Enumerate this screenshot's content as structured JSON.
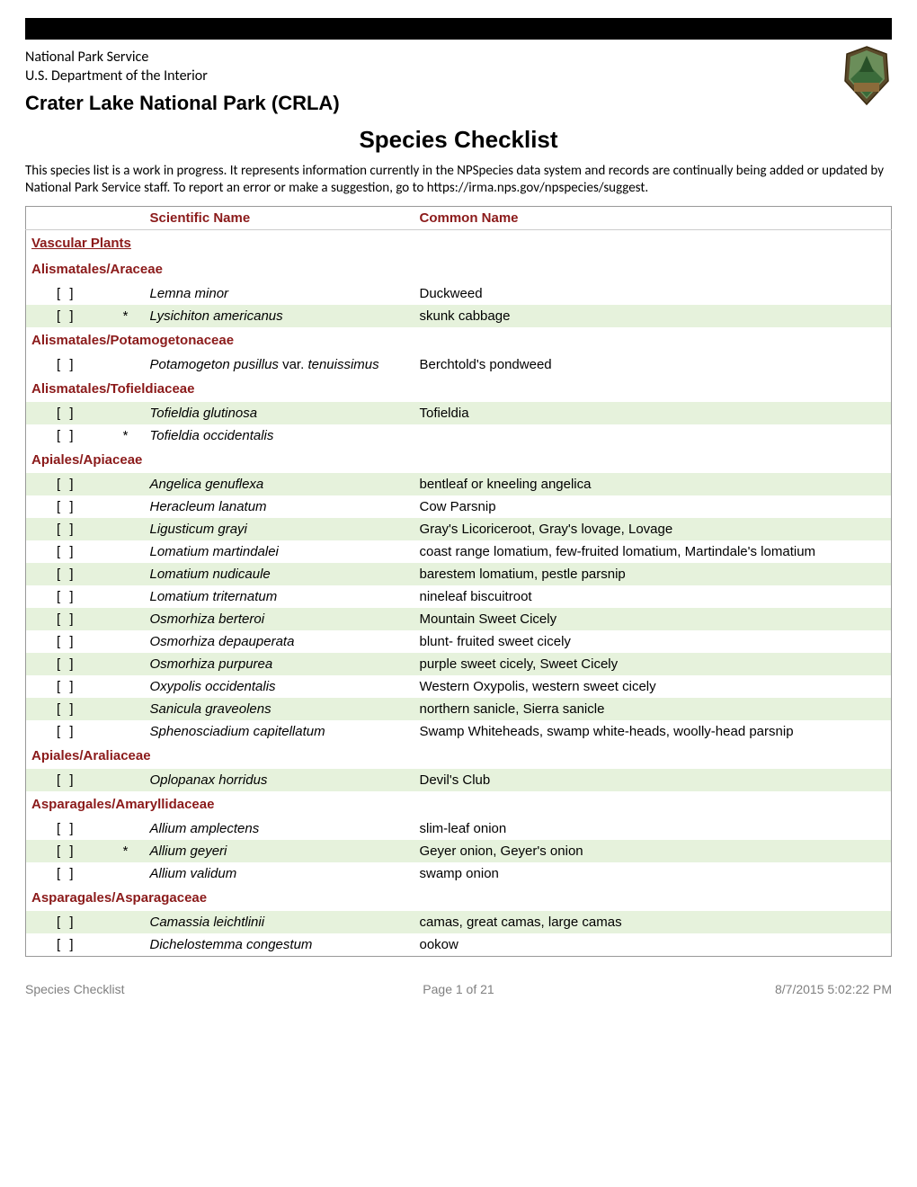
{
  "header": {
    "agency": "National Park Service",
    "department": "U.S. Department of the Interior",
    "park_name": "Crater Lake National Park (CRLA)",
    "page_title": "Species Checklist",
    "intro": "This species list is a work in progress. It represents information currently in the NPSpecies data system and records are continually being added or updated by National Park Service staff.  To report an error or make a suggestion, go to https://irma.nps.gov/npspecies/suggest."
  },
  "table": {
    "header_color": "#8b1a1a",
    "shade_color": "#e6f2dc",
    "columns": {
      "scientific": "Scientific Name",
      "common": "Common Name"
    },
    "checkbox_glyph": "[   ]"
  },
  "rows": [
    {
      "type": "major",
      "label": "Vascular Plants"
    },
    {
      "type": "family",
      "label": "Alismatales/Araceae"
    },
    {
      "type": "species",
      "shade": false,
      "star": false,
      "sci": "Lemna minor",
      "common": "Duckweed"
    },
    {
      "type": "species",
      "shade": true,
      "star": true,
      "sci": "Lysichiton americanus",
      "common": "skunk cabbage"
    },
    {
      "type": "family",
      "label": "Alismatales/Potamogetonaceae"
    },
    {
      "type": "species",
      "shade": false,
      "star": false,
      "sci_html": "Potamogeton pusillus <span class=\"nonitalic\">var.</span> tenuissimus",
      "common": "Berchtold's pondweed"
    },
    {
      "type": "family",
      "label": "Alismatales/Tofieldiaceae"
    },
    {
      "type": "species",
      "shade": true,
      "star": false,
      "sci": "Tofieldia glutinosa",
      "common": "Tofieldia"
    },
    {
      "type": "species",
      "shade": false,
      "star": true,
      "sci": "Tofieldia occidentalis",
      "common": ""
    },
    {
      "type": "family",
      "label": "Apiales/Apiaceae"
    },
    {
      "type": "species",
      "shade": true,
      "star": false,
      "sci": "Angelica genuflexa",
      "common": "bentleaf or kneeling angelica"
    },
    {
      "type": "species",
      "shade": false,
      "star": false,
      "sci": "Heracleum lanatum",
      "common": "Cow Parsnip"
    },
    {
      "type": "species",
      "shade": true,
      "star": false,
      "sci": "Ligusticum grayi",
      "common": "Gray's Licoriceroot, Gray's lovage, Lovage"
    },
    {
      "type": "species",
      "shade": false,
      "star": false,
      "sci": "Lomatium martindalei",
      "common": "coast range lomatium, few-fruited lomatium, Martindale's lomatium"
    },
    {
      "type": "species",
      "shade": true,
      "star": false,
      "sci": "Lomatium nudicaule",
      "common": "barestem lomatium, pestle parsnip"
    },
    {
      "type": "species",
      "shade": false,
      "star": false,
      "sci": "Lomatium triternatum",
      "common": "nineleaf biscuitroot"
    },
    {
      "type": "species",
      "shade": true,
      "star": false,
      "sci": "Osmorhiza berteroi",
      "common": "Mountain Sweet Cicely"
    },
    {
      "type": "species",
      "shade": false,
      "star": false,
      "sci": "Osmorhiza depauperata",
      "common": "blunt- fruited sweet cicely"
    },
    {
      "type": "species",
      "shade": true,
      "star": false,
      "sci": "Osmorhiza purpurea",
      "common": "purple sweet cicely, Sweet Cicely"
    },
    {
      "type": "species",
      "shade": false,
      "star": false,
      "sci": "Oxypolis occidentalis",
      "common": "Western Oxypolis, western sweet cicely"
    },
    {
      "type": "species",
      "shade": true,
      "star": false,
      "sci": "Sanicula graveolens",
      "common": "northern sanicle, Sierra sanicle"
    },
    {
      "type": "species",
      "shade": false,
      "star": false,
      "sci": "Sphenosciadium capitellatum",
      "common": "Swamp Whiteheads, swamp white-heads, woolly-head parsnip"
    },
    {
      "type": "family",
      "label": "Apiales/Araliaceae"
    },
    {
      "type": "species",
      "shade": true,
      "star": false,
      "sci": "Oplopanax horridus",
      "common": "Devil's Club"
    },
    {
      "type": "family",
      "label": "Asparagales/Amaryllidaceae"
    },
    {
      "type": "species",
      "shade": false,
      "star": false,
      "sci": "Allium amplectens",
      "common": "slim-leaf onion"
    },
    {
      "type": "species",
      "shade": true,
      "star": true,
      "sci": "Allium geyeri",
      "common": "Geyer onion, Geyer's onion"
    },
    {
      "type": "species",
      "shade": false,
      "star": false,
      "sci": "Allium validum",
      "common": "swamp onion"
    },
    {
      "type": "family",
      "label": "Asparagales/Asparagaceae"
    },
    {
      "type": "species",
      "shade": true,
      "star": false,
      "sci": "Camassia leichtlinii",
      "common": "camas, great camas, large camas"
    },
    {
      "type": "species",
      "shade": false,
      "star": false,
      "sci": "Dichelostemma congestum",
      "common": "ookow"
    }
  ],
  "footer": {
    "left": "Species Checklist",
    "center": "Page 1 of 21",
    "right": "8/7/2015 5:02:22 PM"
  },
  "logo": {
    "bg": "#5a4a2a",
    "inner": "#3a6b3a"
  }
}
